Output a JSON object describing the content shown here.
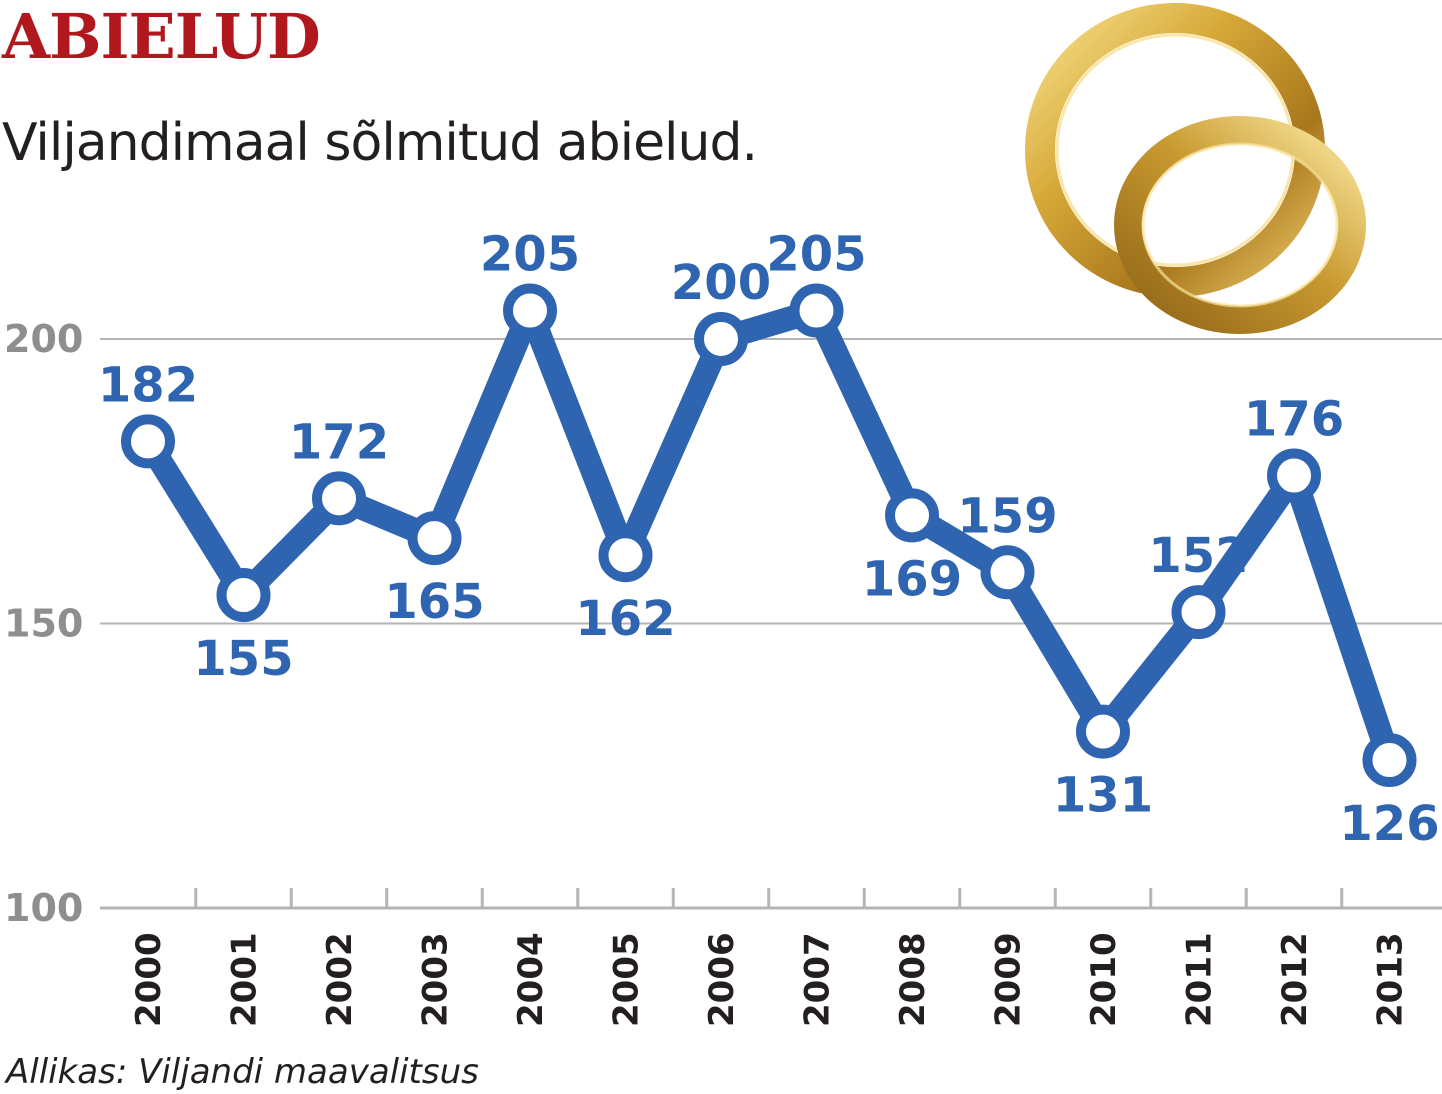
{
  "header": {
    "title": "ABIELUD",
    "subtitle": "Viljandimaal sõlmitud abielud."
  },
  "footer": {
    "source": "Allikas: Viljandi maavalitsus"
  },
  "decoration": {
    "icon": "wedding-rings-icon",
    "gold": "#d6a838"
  },
  "colors": {
    "title": "#b0181e",
    "line": "#2f65b0",
    "grid": "#b5b5b5",
    "axis_label": "#8e8e8e"
  },
  "chart_data": {
    "type": "line",
    "title": "",
    "xlabel": "",
    "ylabel": "",
    "x": [
      "2000",
      "2001",
      "2002",
      "2003",
      "2004",
      "2005",
      "2006",
      "2007",
      "2008",
      "2009",
      "2010",
      "2011",
      "2012",
      "2013"
    ],
    "series": [
      {
        "values": [
          182,
          155,
          172,
          165,
          205,
          162,
          200,
          205,
          169,
          159,
          131,
          152,
          176,
          126
        ]
      }
    ],
    "yticks": [
      100,
      150,
      200
    ],
    "ylim": [
      100,
      205
    ],
    "grid": true,
    "data_labels": true,
    "label_positions": [
      "above",
      "below",
      "above",
      "below",
      "above",
      "below",
      "above",
      "above",
      "below",
      "above",
      "below",
      "above",
      "above",
      "below"
    ]
  }
}
